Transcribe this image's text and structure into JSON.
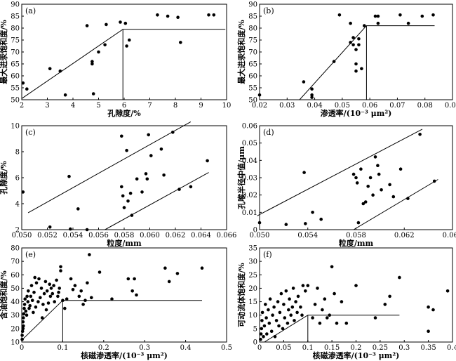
{
  "chart_data": [
    {
      "type": "scatter",
      "label": "(a)",
      "xlabel": "孔隙度/%",
      "ylabel": "最大进汞饱和度/%",
      "xlim": [
        2,
        10
      ],
      "ylim": [
        50,
        90
      ],
      "xticks": [
        2,
        3,
        4,
        5,
        6,
        7,
        8,
        9,
        10
      ],
      "yticks": [
        50,
        55,
        60,
        65,
        70,
        75,
        80,
        85,
        90
      ],
      "points": [
        [
          2.05,
          57
        ],
        [
          2.2,
          54.5
        ],
        [
          3.1,
          63
        ],
        [
          3.5,
          62
        ],
        [
          3.7,
          52
        ],
        [
          4.55,
          81
        ],
        [
          4.75,
          66
        ],
        [
          4.75,
          65
        ],
        [
          4.8,
          52.5
        ],
        [
          5.0,
          70
        ],
        [
          5.25,
          73
        ],
        [
          5.3,
          81.5
        ],
        [
          5.85,
          82.5
        ],
        [
          6.05,
          82
        ],
        [
          6.1,
          72.5
        ],
        [
          6.2,
          75
        ],
        [
          7.3,
          85.5
        ],
        [
          7.7,
          85
        ],
        [
          8.1,
          84.5
        ],
        [
          8.2,
          74
        ],
        [
          9.3,
          85.5
        ],
        [
          9.5,
          85.5
        ]
      ],
      "lines": [
        [
          [
            2.0,
            50.5
          ],
          [
            5.95,
            79.5
          ],
          [
            9.95,
            79.5
          ]
        ],
        [
          [
            5.95,
            50
          ],
          [
            5.95,
            79.5
          ]
        ]
      ]
    },
    {
      "type": "scatter",
      "label": "(b)",
      "xlabel": "渗透率/(10⁻³ μm²)",
      "ylabel": "最大进汞饱和度/%",
      "xlim": [
        0.02,
        0.09
      ],
      "ylim": [
        50,
        90
      ],
      "xticks": [
        0.02,
        0.03,
        0.04,
        0.05,
        0.06,
        0.07,
        0.08,
        0.09
      ],
      "ytick_values": [
        50,
        55,
        60,
        65,
        70,
        75,
        80,
        85,
        90
      ],
      "points": [
        [
          0.02,
          52
        ],
        [
          0.036,
          57.5
        ],
        [
          0.039,
          54.5
        ],
        [
          0.039,
          52
        ],
        [
          0.039,
          51
        ],
        [
          0.047,
          66
        ],
        [
          0.049,
          85.5
        ],
        [
          0.053,
          82
        ],
        [
          0.053,
          74
        ],
        [
          0.054,
          76
        ],
        [
          0.054,
          73
        ],
        [
          0.055,
          71
        ],
        [
          0.055,
          65
        ],
        [
          0.055,
          62
        ],
        [
          0.056,
          75.5
        ],
        [
          0.056,
          73
        ],
        [
          0.057,
          63
        ],
        [
          0.058,
          81
        ],
        [
          0.062,
          85
        ],
        [
          0.063,
          85
        ],
        [
          0.063,
          82
        ],
        [
          0.071,
          85.5
        ],
        [
          0.074,
          82
        ],
        [
          0.079,
          85
        ],
        [
          0.083,
          85.5
        ]
      ],
      "lines": [
        [
          [
            0.0345,
            50
          ],
          [
            0.0588,
            81
          ],
          [
            0.0835,
            81
          ]
        ],
        [
          [
            0.0588,
            50
          ],
          [
            0.0588,
            81
          ]
        ]
      ]
    },
    {
      "type": "scatter",
      "label": "(c)",
      "xlabel": "粒度/mm",
      "ylabel": "孔隙度/%",
      "xlim": [
        0.05,
        0.066
      ],
      "ylim": [
        2,
        10
      ],
      "xticks": [
        0.05,
        0.052,
        0.054,
        0.056,
        0.058,
        0.06,
        0.062,
        0.064,
        0.066
      ],
      "xticklabels": [
        "0.050",
        "0.052",
        "0.054",
        "0.056",
        "0.058",
        "0.060",
        "0.062",
        "0.064",
        "0.066"
      ],
      "yticks": [
        2,
        4,
        6,
        8,
        10
      ],
      "points": [
        [
          0.0501,
          4.9
        ],
        [
          0.0522,
          2.2
        ],
        [
          0.0537,
          6.1
        ],
        [
          0.0538,
          2.05
        ],
        [
          0.0544,
          3.6
        ],
        [
          0.0551,
          2
        ],
        [
          0.0578,
          9.2
        ],
        [
          0.0582,
          8.1
        ],
        [
          0.0578,
          5.3
        ],
        [
          0.0579,
          4.6
        ],
        [
          0.058,
          3.7
        ],
        [
          0.0583,
          4.2
        ],
        [
          0.0585,
          4.8
        ],
        [
          0.0586,
          3.1
        ],
        [
          0.059,
          5.9
        ],
        [
          0.0594,
          4.9
        ],
        [
          0.0597,
          6.3
        ],
        [
          0.0598,
          5.9
        ],
        [
          0.0599,
          9.3
        ],
        [
          0.0601,
          7.7
        ],
        [
          0.0609,
          8.2
        ],
        [
          0.0611,
          6.2
        ],
        [
          0.0618,
          9.5
        ],
        [
          0.0623,
          5.1
        ],
        [
          0.0632,
          5.3
        ],
        [
          0.0645,
          7.3
        ]
      ],
      "lines": [
        [
          [
            0.0505,
            3.3
          ],
          [
            0.0632,
            10.3
          ]
        ],
        [
          [
            0.0565,
            2
          ],
          [
            0.0646,
            6.4
          ]
        ]
      ]
    },
    {
      "type": "scatter",
      "label": "(d)",
      "xlabel": "粒度/mm",
      "ylabel": "孔喉半径中值/μm",
      "xlim": [
        0.05,
        0.066
      ],
      "ylim": [
        0,
        0.06
      ],
      "xticks": [
        0.05,
        0.054,
        0.058,
        0.062,
        0.066
      ],
      "xticklabels": [
        "0.050",
        "0.054",
        "0.058",
        "0.062",
        "0.066"
      ],
      "yticks": [
        0,
        0.01,
        0.02,
        0.03,
        0.04,
        0.05,
        0.06
      ],
      "yticklabels": [
        "0",
        "0.01",
        "0.02",
        "0.03",
        "0.04",
        "0.05",
        "0.06"
      ],
      "points": [
        [
          0.05,
          0.004
        ],
        [
          0.0522,
          0.003
        ],
        [
          0.0537,
          0.033
        ],
        [
          0.0538,
          0.0035
        ],
        [
          0.0544,
          0.01
        ],
        [
          0.0551,
          0.006
        ],
        [
          0.0578,
          0.032
        ],
        [
          0.058,
          0.03
        ],
        [
          0.0581,
          0.027
        ],
        [
          0.0582,
          0.004
        ],
        [
          0.0584,
          0.035
        ],
        [
          0.0586,
          0.015
        ],
        [
          0.0588,
          0.016
        ],
        [
          0.059,
          0.025
        ],
        [
          0.0592,
          0.03
        ],
        [
          0.0594,
          0.02
        ],
        [
          0.0596,
          0.042
        ],
        [
          0.0598,
          0.037
        ],
        [
          0.0599,
          0.032
        ],
        [
          0.0601,
          0.023
        ],
        [
          0.0608,
          0.026
        ],
        [
          0.0611,
          0.019
        ],
        [
          0.0617,
          0.035
        ],
        [
          0.0623,
          0.018
        ],
        [
          0.0633,
          0.055
        ],
        [
          0.0645,
          0.028
        ]
      ],
      "lines": [
        [
          [
            0.0498,
            0.008
          ],
          [
            0.0635,
            0.058
          ]
        ],
        [
          [
            0.0578,
            0
          ],
          [
            0.0648,
            0.029
          ]
        ]
      ]
    },
    {
      "type": "scatter",
      "label": "(e)",
      "xlabel": "核磁渗透率/(10⁻³ μm²)",
      "ylabel": "含油饱和度/%",
      "xlim": [
        0,
        0.5
      ],
      "ylim": [
        10,
        80
      ],
      "xticks": [
        0,
        0.1,
        0.2,
        0.3,
        0.4,
        0.5
      ],
      "yticks": [
        10,
        20,
        30,
        40,
        50,
        60,
        70,
        80
      ],
      "points": [
        [
          0.001,
          12
        ],
        [
          0.001,
          15
        ],
        [
          0.002,
          18
        ],
        [
          0.003,
          20
        ],
        [
          0.004,
          22
        ],
        [
          0.003,
          25
        ],
        [
          0.004,
          28
        ],
        [
          0.005,
          31
        ],
        [
          0.006,
          35
        ],
        [
          0.007,
          38
        ],
        [
          0.008,
          42
        ],
        [
          0.01,
          33
        ],
        [
          0.012,
          30
        ],
        [
          0.013,
          44
        ],
        [
          0.015,
          40
        ],
        [
          0.016,
          48
        ],
        [
          0.018,
          35
        ],
        [
          0.02,
          37
        ],
        [
          0.022,
          44
        ],
        [
          0.024,
          52
        ],
        [
          0.026,
          41
        ],
        [
          0.028,
          32
        ],
        [
          0.03,
          47
        ],
        [
          0.032,
          58
        ],
        [
          0.034,
          36
        ],
        [
          0.036,
          54
        ],
        [
          0.04,
          40
        ],
        [
          0.042,
          57
        ],
        [
          0.045,
          43
        ],
        [
          0.048,
          50
        ],
        [
          0.05,
          28
        ],
        [
          0.052,
          38
        ],
        [
          0.055,
          46
        ],
        [
          0.058,
          55
        ],
        [
          0.06,
          34
        ],
        [
          0.062,
          48
        ],
        [
          0.065,
          39
        ],
        [
          0.068,
          53
        ],
        [
          0.07,
          44
        ],
        [
          0.072,
          50
        ],
        [
          0.075,
          46
        ],
        [
          0.078,
          52
        ],
        [
          0.08,
          40
        ],
        [
          0.085,
          56
        ],
        [
          0.088,
          44
        ],
        [
          0.09,
          47
        ],
        [
          0.092,
          50
        ],
        [
          0.095,
          66
        ],
        [
          0.095,
          63
        ],
        [
          0.1,
          41
        ],
        [
          0.105,
          35
        ],
        [
          0.11,
          42
        ],
        [
          0.12,
          57
        ],
        [
          0.125,
          49
        ],
        [
          0.13,
          52
        ],
        [
          0.14,
          44
        ],
        [
          0.145,
          48
        ],
        [
          0.15,
          38
        ],
        [
          0.155,
          41
        ],
        [
          0.16,
          54
        ],
        [
          0.165,
          75
        ],
        [
          0.17,
          43
        ],
        [
          0.19,
          62
        ],
        [
          0.22,
          42
        ],
        [
          0.26,
          57
        ],
        [
          0.27,
          48
        ],
        [
          0.275,
          57
        ],
        [
          0.28,
          45
        ],
        [
          0.35,
          65
        ],
        [
          0.36,
          55
        ],
        [
          0.38,
          61
        ],
        [
          0.44,
          65
        ]
      ],
      "lines": [
        [
          [
            0.002,
            12
          ],
          [
            0.1,
            41
          ],
          [
            0.44,
            41
          ]
        ],
        [
          [
            0.1,
            10
          ],
          [
            0.1,
            41
          ]
        ]
      ]
    },
    {
      "type": "scatter",
      "label": "(f)",
      "xlabel": "核磁渗透率/(10⁻³ μm²)",
      "ylabel": "可动流体饱和度/%",
      "xlim": [
        0,
        0.4
      ],
      "ylim": [
        0,
        35
      ],
      "xticks": [
        0,
        0.05,
        0.1,
        0.15,
        0.2,
        0.25,
        0.3,
        0.35,
        0.4
      ],
      "yticks": [
        0,
        5,
        10,
        15,
        20,
        25,
        30,
        35
      ],
      "points": [
        [
          0.002,
          1
        ],
        [
          0.003,
          3
        ],
        [
          0.004,
          5
        ],
        [
          0.005,
          8
        ],
        [
          0.006,
          11
        ],
        [
          0.008,
          2
        ],
        [
          0.01,
          6
        ],
        [
          0.012,
          14
        ],
        [
          0.014,
          9
        ],
        [
          0.015,
          3
        ],
        [
          0.018,
          12
        ],
        [
          0.02,
          7
        ],
        [
          0.022,
          16
        ],
        [
          0.025,
          4
        ],
        [
          0.027,
          10
        ],
        [
          0.03,
          13
        ],
        [
          0.032,
          2
        ],
        [
          0.035,
          8
        ],
        [
          0.038,
          15
        ],
        [
          0.04,
          6
        ],
        [
          0.042,
          11
        ],
        [
          0.045,
          18
        ],
        [
          0.048,
          5
        ],
        [
          0.05,
          14
        ],
        [
          0.052,
          9
        ],
        [
          0.055,
          19
        ],
        [
          0.058,
          7
        ],
        [
          0.06,
          12
        ],
        [
          0.062,
          16
        ],
        [
          0.065,
          10
        ],
        [
          0.068,
          13
        ],
        [
          0.07,
          20
        ],
        [
          0.072,
          8
        ],
        [
          0.075,
          15
        ],
        [
          0.078,
          11
        ],
        [
          0.08,
          17
        ],
        [
          0.085,
          13
        ],
        [
          0.088,
          10
        ],
        [
          0.09,
          21
        ],
        [
          0.095,
          19
        ],
        [
          0.1,
          21
        ],
        [
          0.11,
          9
        ],
        [
          0.115,
          14
        ],
        [
          0.12,
          20
        ],
        [
          0.125,
          7
        ],
        [
          0.13,
          12
        ],
        [
          0.135,
          16
        ],
        [
          0.14,
          9
        ],
        [
          0.145,
          10
        ],
        [
          0.15,
          28
        ],
        [
          0.155,
          18
        ],
        [
          0.16,
          7
        ],
        [
          0.17,
          15
        ],
        [
          0.18,
          7
        ],
        [
          0.2,
          21
        ],
        [
          0.24,
          9
        ],
        [
          0.26,
          14
        ],
        [
          0.27,
          17
        ],
        [
          0.29,
          24
        ],
        [
          0.35,
          4
        ],
        [
          0.35,
          13
        ],
        [
          0.36,
          12
        ],
        [
          0.39,
          19
        ]
      ],
      "lines": [
        [
          [
            0.01,
            0
          ],
          [
            0.1,
            10
          ],
          [
            0.29,
            10
          ]
        ],
        [
          [
            0.1,
            0
          ],
          [
            0.1,
            10
          ]
        ]
      ]
    }
  ]
}
